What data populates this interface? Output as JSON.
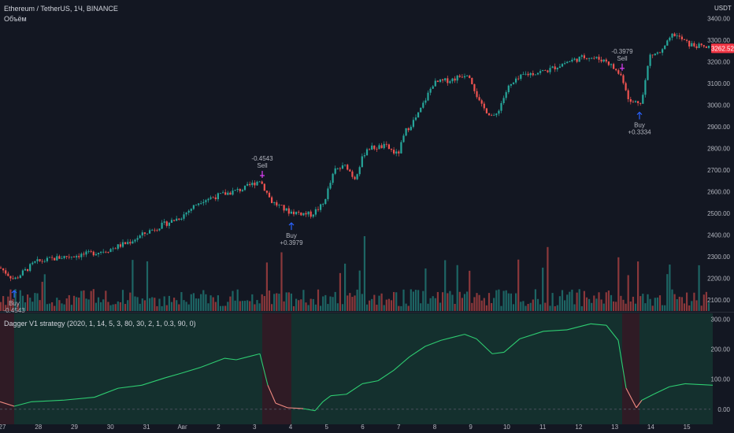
{
  "header": {
    "symbol": "Ethereum / TetherUS, 1Ч, BINANCE",
    "volume_label": "Объём",
    "indicator_label": "Dagger V1 strategy (2020, 1, 14, 5, 3, 80, 30, 2, 1, 0.3, 90, 0)",
    "currency": "USDT",
    "last_price": "3262.52"
  },
  "colors": {
    "background": "#131722",
    "grid": "#1e222d",
    "up": "#26a69a",
    "down": "#ef5350",
    "signal_arrow": "#2962ff",
    "sell_marker": "#e040fb",
    "osc_line": "#2ecc71",
    "osc_line_down": "#f28b82",
    "osc_zone_green": "#163a33",
    "osc_zone_red": "#3a1d27",
    "price_tag": "#f23645"
  },
  "chart_data": [
    {
      "type": "candlestick",
      "title": "Ethereum / TetherUS, 1Ч, BINANCE",
      "ylabel": "USDT",
      "ylim": [
        2050,
        3420
      ],
      "y_ticks": [
        "3400.00",
        "3300.00",
        "3200.00",
        "3100.00",
        "3000.00",
        "2900.00",
        "2800.00",
        "2700.00",
        "2600.00",
        "2500.00",
        "2400.00",
        "2300.00",
        "2200.00",
        "2100.00"
      ],
      "x_ticks": [
        "27",
        "28",
        "29",
        "30",
        "31",
        "Авг",
        "2",
        "3",
        "4",
        "5",
        "6",
        "7",
        "8",
        "9",
        "10",
        "11",
        "12",
        "13",
        "14",
        "15"
      ],
      "last_price": 3262.52,
      "path": [
        [
          0,
          2250
        ],
        [
          18,
          2195
        ],
        [
          45,
          2275
        ],
        [
          80,
          2300
        ],
        [
          110,
          2312
        ],
        [
          140,
          2335
        ],
        [
          165,
          2370
        ],
        [
          190,
          2420
        ],
        [
          230,
          2485
        ],
        [
          255,
          2560
        ],
        [
          285,
          2590
        ],
        [
          310,
          2615
        ],
        [
          330,
          2655
        ],
        [
          345,
          2555
        ],
        [
          365,
          2510
        ],
        [
          395,
          2495
        ],
        [
          410,
          2540
        ],
        [
          425,
          2700
        ],
        [
          440,
          2720
        ],
        [
          450,
          2660
        ],
        [
          465,
          2800
        ],
        [
          490,
          2810
        ],
        [
          505,
          2770
        ],
        [
          515,
          2880
        ],
        [
          530,
          2950
        ],
        [
          550,
          3100
        ],
        [
          575,
          3120
        ],
        [
          595,
          3150
        ],
        [
          610,
          3000
        ],
        [
          628,
          2940
        ],
        [
          645,
          3080
        ],
        [
          665,
          3140
        ],
        [
          695,
          3160
        ],
        [
          720,
          3200
        ],
        [
          745,
          3225
        ],
        [
          770,
          3205
        ],
        [
          790,
          3130
        ],
        [
          800,
          3010
        ],
        [
          815,
          3020
        ],
        [
          825,
          3230
        ],
        [
          840,
          3245
        ],
        [
          855,
          3330
        ],
        [
          875,
          3280
        ],
        [
          905,
          3260
        ],
        [
          932,
          3262
        ]
      ],
      "signals": [
        {
          "label": "Buy",
          "value": "-0.4543",
          "t": 18
        },
        {
          "label": "Sell",
          "value": "-0.4543",
          "t": 333
        },
        {
          "label": "Buy",
          "value": "+0.3979",
          "t": 370
        },
        {
          "label": "Sell",
          "value": "-0.3979",
          "t": 790
        },
        {
          "label": "Buy",
          "value": "+0.3334",
          "t": 812
        }
      ]
    },
    {
      "type": "bar",
      "title": "Объём",
      "description": "volume histogram under price pane"
    },
    {
      "type": "line",
      "title": "Dagger V1 strategy (2020, 1, 14, 5, 3, 80, 30, 2, 1, 0.3, 90, 0)",
      "ylim": [
        -40,
        320
      ],
      "y_ticks": [
        "300.00",
        "200.00",
        "100.00",
        "0.00"
      ],
      "zones": [
        {
          "from": 0,
          "to": 18,
          "color": "red"
        },
        {
          "from": 18,
          "to": 333,
          "color": "green"
        },
        {
          "from": 333,
          "to": 370,
          "color": "red"
        },
        {
          "from": 370,
          "to": 790,
          "color": "green"
        },
        {
          "from": 790,
          "to": 812,
          "color": "red"
        },
        {
          "from": 812,
          "to": 905,
          "color": "green"
        }
      ],
      "x": [
        0,
        18,
        40,
        80,
        120,
        150,
        180,
        210,
        230,
        255,
        285,
        300,
        315,
        330,
        340,
        350,
        365,
        385,
        400,
        410,
        420,
        440,
        460,
        480,
        500,
        520,
        540,
        560,
        575,
        590,
        605,
        625,
        640,
        660,
        690,
        720,
        750,
        770,
        785,
        795,
        808,
        815,
        830,
        850,
        870,
        905
      ],
      "y": [
        25,
        10,
        25,
        30,
        40,
        70,
        80,
        105,
        120,
        140,
        170,
        165,
        175,
        185,
        80,
        20,
        5,
        2,
        -5,
        25,
        45,
        50,
        85,
        95,
        130,
        175,
        210,
        230,
        240,
        250,
        235,
        185,
        190,
        235,
        260,
        265,
        285,
        280,
        230,
        70,
        5,
        30,
        50,
        75,
        85,
        80
      ]
    }
  ]
}
